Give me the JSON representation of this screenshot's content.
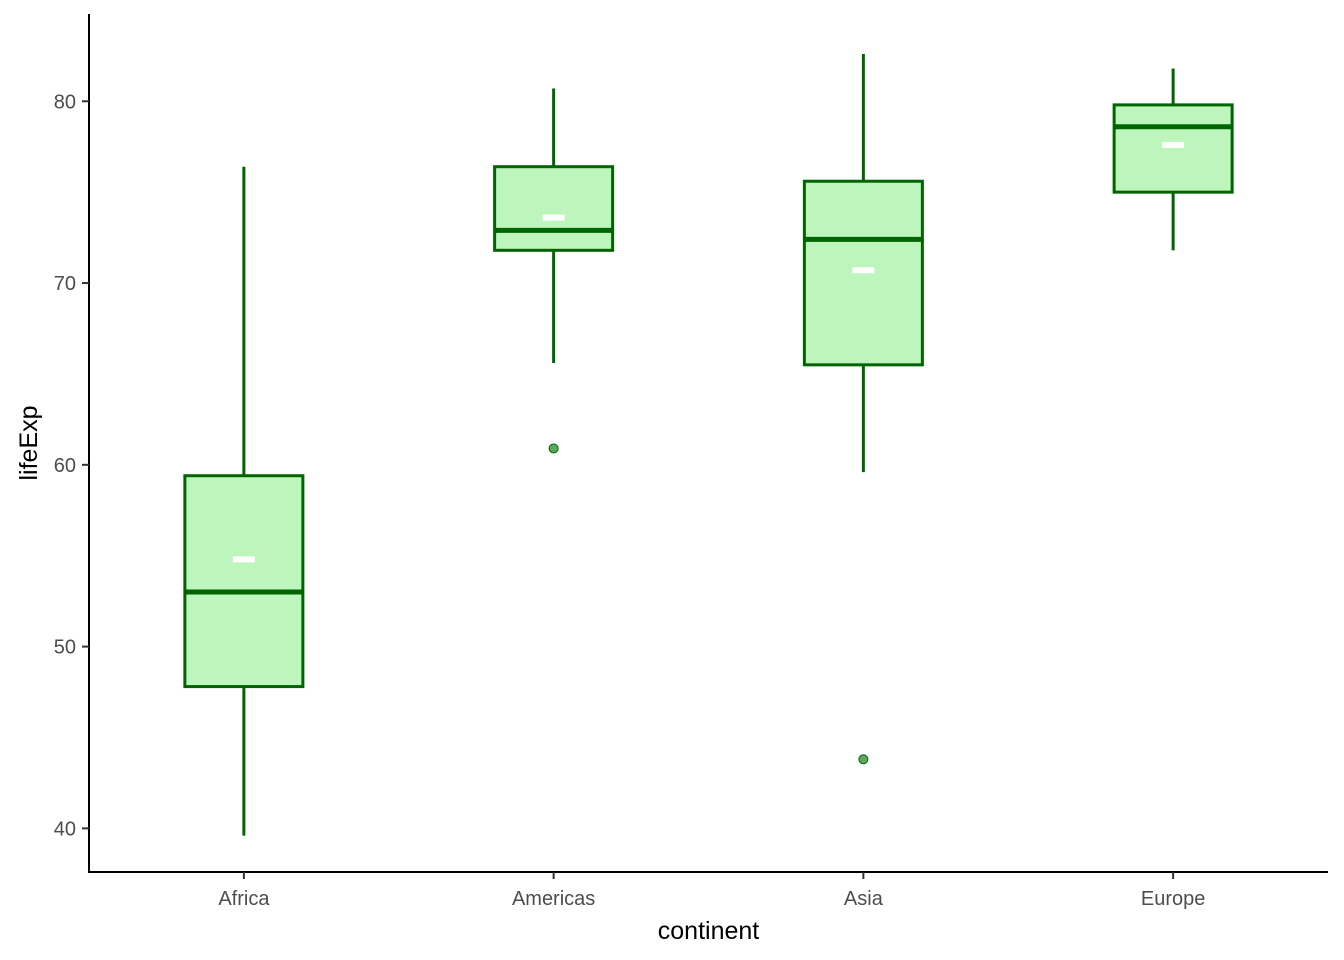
{
  "chart_data": {
    "type": "boxplot",
    "title": "",
    "xlabel": "continent",
    "ylabel": "lifeExp",
    "ylim": [
      37.6,
      84.8
    ],
    "y_ticks": [
      40,
      50,
      60,
      70,
      80
    ],
    "y_tick_labels": [
      "40",
      "50",
      "60",
      "70",
      "80"
    ],
    "grid": false,
    "legend": "none",
    "colors": {
      "box_fill": "#bdf5bd",
      "box_line": "#006400",
      "mean_marker": "#ffffff",
      "outlier_fill": "#5ea85e"
    },
    "categories": [
      "Africa",
      "Americas",
      "Asia",
      "Europe"
    ],
    "boxes": [
      {
        "category": "Africa",
        "whisker_low": 39.6,
        "q1": 47.8,
        "median": 53.0,
        "q3": 59.4,
        "whisker_high": 76.4,
        "mean": 54.8,
        "outliers": []
      },
      {
        "category": "Americas",
        "whisker_low": 65.6,
        "q1": 71.8,
        "median": 72.9,
        "q3": 76.4,
        "whisker_high": 80.7,
        "mean": 73.6,
        "outliers": [
          60.9
        ]
      },
      {
        "category": "Asia",
        "whisker_low": 59.6,
        "q1": 65.5,
        "median": 72.4,
        "q3": 75.6,
        "whisker_high": 82.6,
        "mean": 70.7,
        "outliers": [
          43.8
        ]
      },
      {
        "category": "Europe",
        "whisker_low": 71.8,
        "q1": 75.0,
        "median": 78.6,
        "q3": 79.8,
        "whisker_high": 81.8,
        "mean": 77.6,
        "outliers": []
      }
    ]
  }
}
